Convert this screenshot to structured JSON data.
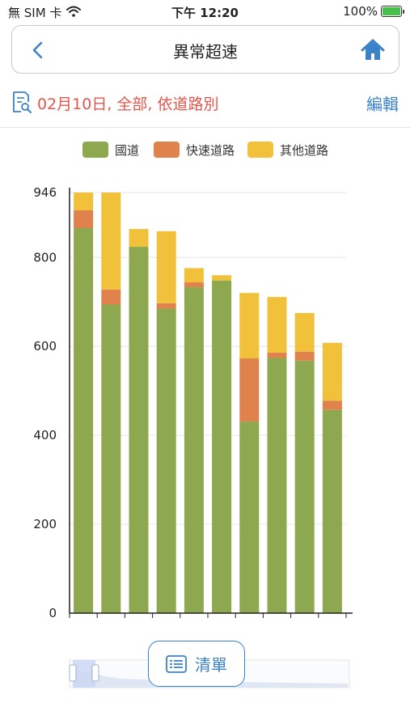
{
  "status_bar": {
    "carrier": "無 SIM 卡",
    "time": "下午 12:20",
    "battery": "100%"
  },
  "nav": {
    "title": "異常超速"
  },
  "filter": {
    "summary": "02月10日, 全部, 依道路別",
    "edit_label": "編輯"
  },
  "list_button": {
    "label": "清單"
  },
  "colors": {
    "national": "#8ea84f",
    "expressway": "#e0824c",
    "other": "#f1c13c",
    "accent": "#3b82c8",
    "filter_text": "#e2574c"
  },
  "chart_data": {
    "type": "bar",
    "stacked": true,
    "legend_position": "top",
    "categories": [
      "",
      "",
      "",
      "",
      "",
      "",
      "",
      "",
      "",
      ""
    ],
    "series": [
      {
        "name": "國道",
        "color": "#8ea84f",
        "values": [
          866,
          694,
          824,
          685,
          733,
          748,
          431,
          574,
          568,
          457
        ]
      },
      {
        "name": "快速道路",
        "color": "#e0824c",
        "values": [
          40,
          34,
          0,
          12,
          11,
          0,
          142,
          12,
          20,
          21
        ]
      },
      {
        "name": "其他道路",
        "color": "#f1c13c",
        "values": [
          40,
          218,
          40,
          162,
          32,
          12,
          147,
          125,
          87,
          130
        ]
      }
    ],
    "y_ticks": [
      0,
      200,
      400,
      600,
      800,
      946
    ],
    "ylim": [
      0,
      946
    ],
    "grid": true
  }
}
